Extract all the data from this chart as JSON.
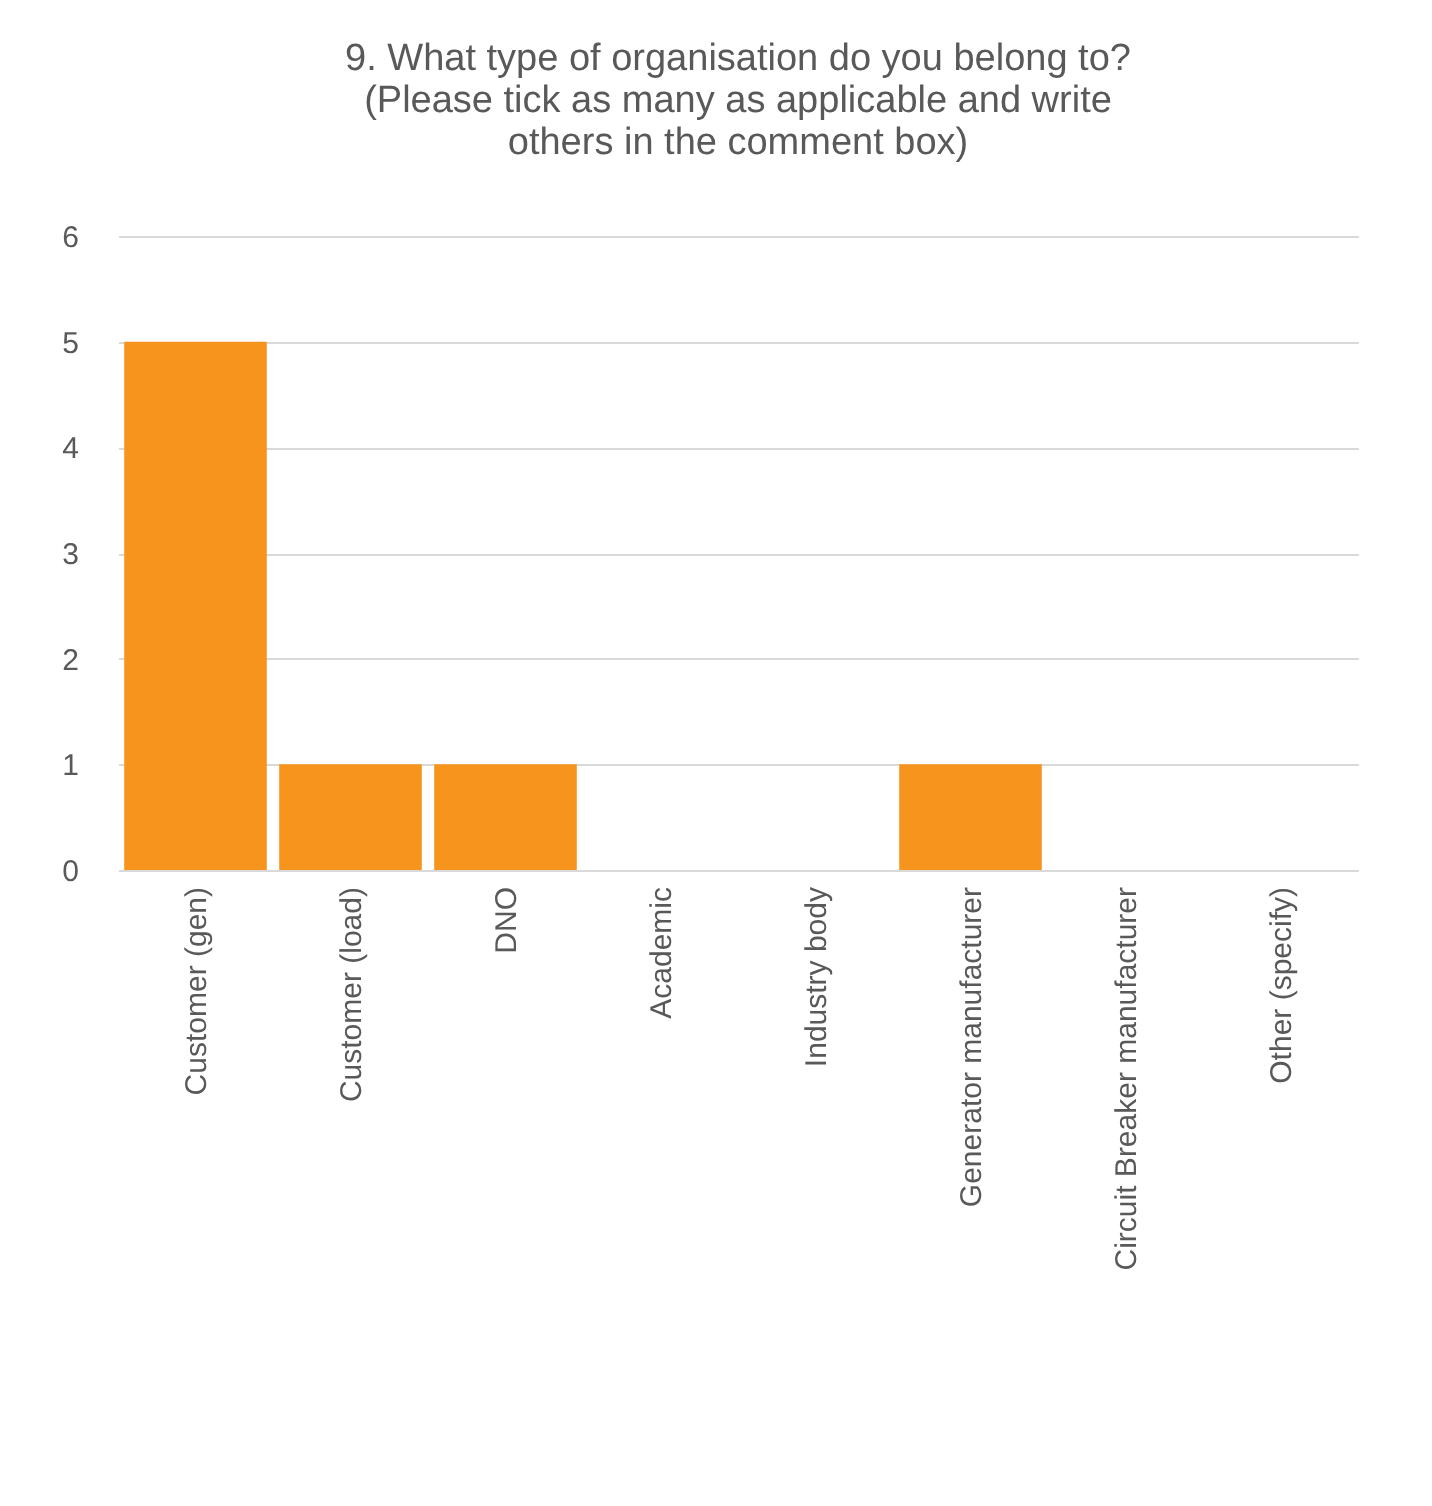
{
  "chart_data": {
    "type": "bar",
    "title": "9. What type of organisation do you belong to? (Please tick as many as applicable and write others in the comment box)",
    "categories": [
      "Customer (gen)",
      "Customer (load)",
      "DNO",
      "Academic",
      "Industry body",
      "Generator manufacturer",
      "Circuit Breaker manufacturer",
      "Other (specify)"
    ],
    "values": [
      5,
      1,
      1,
      0,
      0,
      1,
      0,
      0
    ],
    "color": "#f7941d",
    "ylim": [
      0,
      6
    ],
    "yticks": [
      0,
      1,
      2,
      3,
      4,
      5,
      6
    ],
    "grid": "y"
  }
}
